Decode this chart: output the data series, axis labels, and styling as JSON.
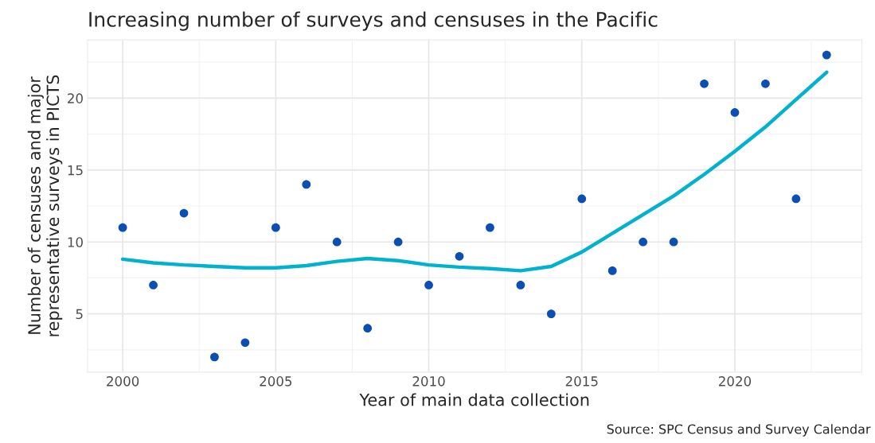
{
  "chart_data": {
    "type": "scatter",
    "title": "Increasing number of surveys and censuses in the Pacific",
    "xlabel": "Year of main data collection",
    "ylabel": "Number of censuses and major\nrepresentative surveys in PICTS",
    "annotations": [
      "Source: SPC Census and Survey Calendar"
    ],
    "series": [
      {
        "color": "#0b4fb3",
        "marker": "circle",
        "x": [
          2000,
          2001,
          2002,
          2003,
          2004,
          2005,
          2006,
          2007,
          2008,
          2009,
          2010,
          2011,
          2012,
          2013,
          2014,
          2015,
          2016,
          2017,
          2018,
          2019,
          2020,
          2021,
          2022,
          2023
        ],
        "values": [
          11,
          7,
          12,
          2,
          3,
          11,
          14,
          10,
          4,
          10,
          7,
          9,
          11,
          7,
          5,
          13,
          8,
          10,
          10,
          21,
          19,
          21,
          13,
          23
        ]
      },
      {
        "type": "line",
        "color": "#00b2cc",
        "x": [
          2000,
          2001,
          2002,
          2003,
          2004,
          2005,
          2006,
          2007,
          2008,
          2009,
          2010,
          2011,
          2012,
          2013,
          2014,
          2015,
          2016,
          2017,
          2018,
          2019,
          2020,
          2021,
          2022,
          2023
        ],
        "values": [
          8.8,
          8.55,
          8.4,
          8.3,
          8.2,
          8.2,
          8.35,
          8.65,
          8.85,
          8.7,
          8.4,
          8.25,
          8.15,
          8.0,
          8.3,
          9.3,
          10.6,
          11.9,
          13.2,
          14.7,
          16.3,
          18.0,
          19.9,
          21.8
        ]
      }
    ],
    "xlim": [
      1998.85,
      2024.15
    ],
    "xticks": [
      2000,
      2005,
      2010,
      2015,
      2020
    ],
    "ylim": [
      0.95,
      24.05
    ],
    "yticks": [
      5,
      10,
      15,
      20
    ],
    "grid": true,
    "legend": false
  }
}
